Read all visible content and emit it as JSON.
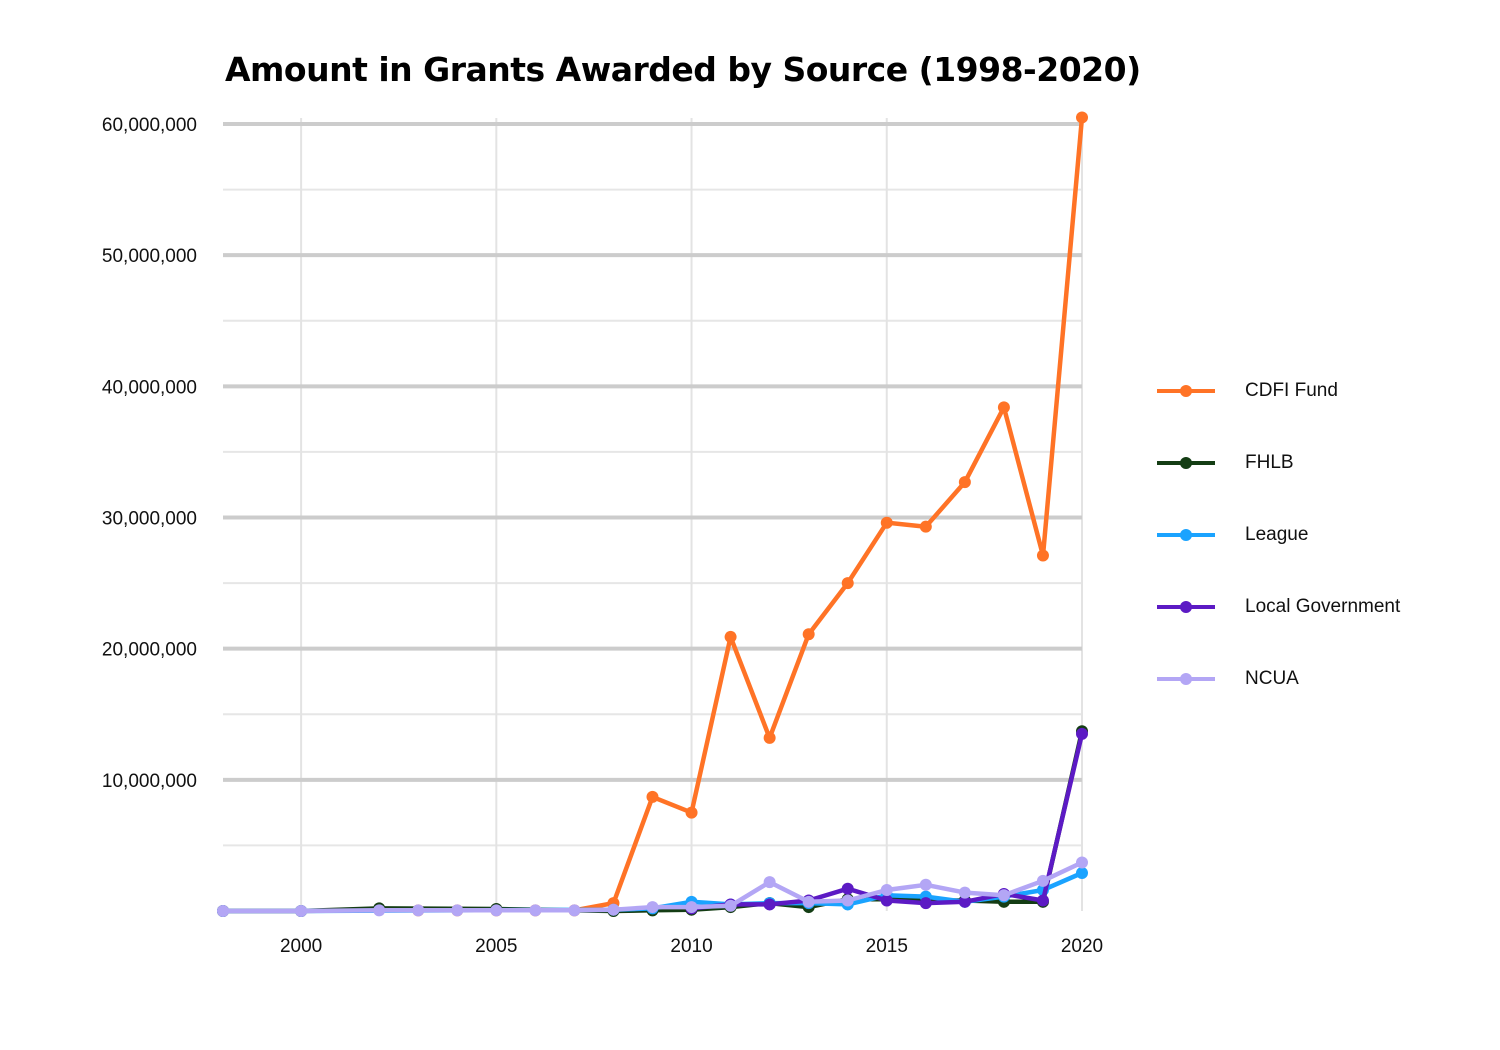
{
  "chart_data": {
    "type": "line",
    "title": "Amount in Grants Awarded by Source (1998-2020)",
    "xlabel": "",
    "ylabel": "",
    "xlim": [
      1998,
      2020
    ],
    "ylim": [
      0,
      60000000
    ],
    "x_ticks": [
      2000,
      2005,
      2010,
      2015,
      2020
    ],
    "y_ticks": [
      10000000,
      20000000,
      30000000,
      40000000,
      50000000,
      60000000
    ],
    "y_tick_labels": [
      "10,000,000",
      "20,000,000",
      "30,000,000",
      "40,000,000",
      "50,000,000",
      "60,000,000"
    ],
    "grid": true,
    "legend_position": "right",
    "series": [
      {
        "name": "CDFI Fund",
        "color": "#ff7326",
        "points": [
          [
            1998,
            0
          ],
          [
            2000,
            0
          ],
          [
            2002,
            100000
          ],
          [
            2003,
            50000
          ],
          [
            2004,
            50000
          ],
          [
            2005,
            50000
          ],
          [
            2006,
            50000
          ],
          [
            2007,
            50000
          ],
          [
            2008,
            600000
          ],
          [
            2009,
            8700000
          ],
          [
            2010,
            7500000
          ],
          [
            2011,
            20900000
          ],
          [
            2012,
            13200000
          ],
          [
            2013,
            21100000
          ],
          [
            2014,
            25000000
          ],
          [
            2015,
            29600000
          ],
          [
            2016,
            29300000
          ],
          [
            2017,
            32700000
          ],
          [
            2018,
            38400000
          ],
          [
            2019,
            27100000
          ],
          [
            2020,
            60500000
          ]
        ]
      },
      {
        "name": "FHLB",
        "color": "#143d14",
        "points": [
          [
            1998,
            0
          ],
          [
            2000,
            0
          ],
          [
            2002,
            200000
          ],
          [
            2005,
            150000
          ],
          [
            2008,
            0
          ],
          [
            2009,
            50000
          ],
          [
            2010,
            100000
          ],
          [
            2011,
            300000
          ],
          [
            2012,
            600000
          ],
          [
            2013,
            300000
          ],
          [
            2014,
            900000
          ],
          [
            2015,
            900000
          ],
          [
            2016,
            800000
          ],
          [
            2017,
            800000
          ],
          [
            2018,
            700000
          ],
          [
            2019,
            700000
          ],
          [
            2020,
            13700000
          ]
        ]
      },
      {
        "name": "League",
        "color": "#1aa3ff",
        "points": [
          [
            1998,
            0
          ],
          [
            2000,
            0
          ],
          [
            2008,
            100000
          ],
          [
            2009,
            200000
          ],
          [
            2010,
            700000
          ],
          [
            2011,
            500000
          ],
          [
            2012,
            600000
          ],
          [
            2013,
            600000
          ],
          [
            2014,
            500000
          ],
          [
            2015,
            1200000
          ],
          [
            2016,
            1100000
          ],
          [
            2017,
            700000
          ],
          [
            2018,
            1100000
          ],
          [
            2019,
            1600000
          ],
          [
            2020,
            2900000
          ]
        ]
      },
      {
        "name": "Local Government",
        "color": "#5c1ac4",
        "points": [
          [
            2010,
            200000
          ],
          [
            2011,
            500000
          ],
          [
            2012,
            500000
          ],
          [
            2013,
            800000
          ],
          [
            2014,
            1700000
          ],
          [
            2015,
            800000
          ],
          [
            2016,
            600000
          ],
          [
            2017,
            700000
          ],
          [
            2018,
            1300000
          ],
          [
            2019,
            800000
          ],
          [
            2020,
            13500000
          ]
        ]
      },
      {
        "name": "NCUA",
        "color": "#b3a6f5",
        "points": [
          [
            1998,
            0
          ],
          [
            2000,
            0
          ],
          [
            2002,
            50000
          ],
          [
            2003,
            50000
          ],
          [
            2004,
            50000
          ],
          [
            2005,
            50000
          ],
          [
            2006,
            50000
          ],
          [
            2007,
            50000
          ],
          [
            2008,
            100000
          ],
          [
            2009,
            300000
          ],
          [
            2010,
            300000
          ],
          [
            2011,
            400000
          ],
          [
            2012,
            2200000
          ],
          [
            2013,
            700000
          ],
          [
            2014,
            800000
          ],
          [
            2015,
            1600000
          ],
          [
            2016,
            2000000
          ],
          [
            2017,
            1400000
          ],
          [
            2018,
            1200000
          ],
          [
            2019,
            2300000
          ],
          [
            2020,
            3700000
          ]
        ]
      }
    ]
  }
}
